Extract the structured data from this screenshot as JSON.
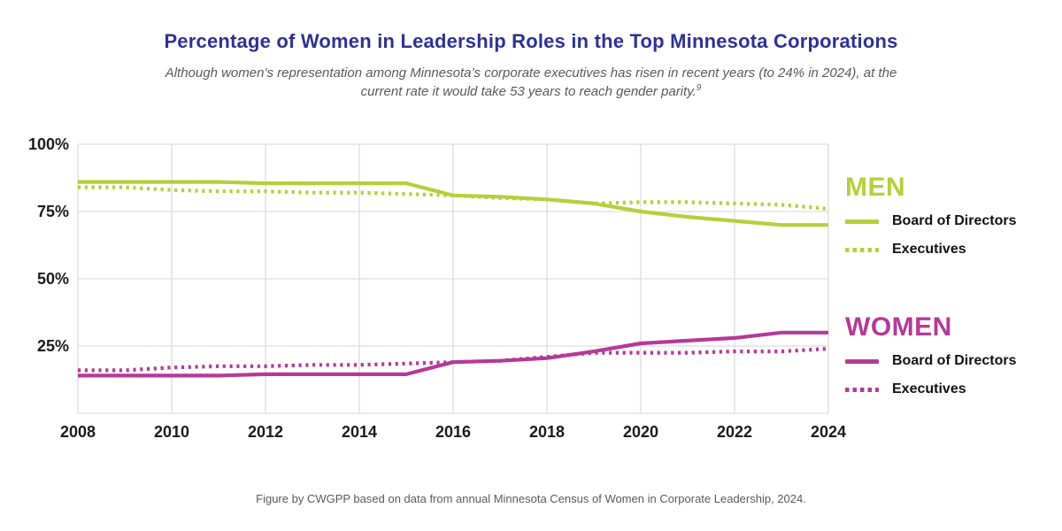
{
  "header": {
    "title": "Percentage of Women in Leadership Roles in the Top Minnesota Corporations",
    "subtitle_line1": "Although women’s representation among Minnesota’s corporate executives has risen in recent years (to 24% in 2024), at the",
    "subtitle_line2": "current rate it would take 53 years to reach gender parity.",
    "footnote_mark": "9"
  },
  "legend": {
    "men": {
      "heading": "MEN",
      "items": [
        {
          "label": "Board of Directors",
          "style": "solid"
        },
        {
          "label": "Executives",
          "style": "dotted"
        }
      ]
    },
    "women": {
      "heading": "WOMEN",
      "items": [
        {
          "label": "Board of Directors",
          "style": "solid"
        },
        {
          "label": "Executives",
          "style": "dotted"
        }
      ]
    }
  },
  "footer": {
    "caption": "Figure by CWGPP based on data from annual Minnesota Census of Women in Corporate Leadership, 2024."
  },
  "colors": {
    "men": "#b6ce3b",
    "women": "#b43a97",
    "title": "#2e3192",
    "muted": "#58595b",
    "grid": "#dcdcdc"
  },
  "chart_data": {
    "type": "line",
    "x": [
      2008,
      2009,
      2010,
      2011,
      2012,
      2013,
      2014,
      2015,
      2016,
      2017,
      2018,
      2019,
      2020,
      2021,
      2022,
      2023,
      2024
    ],
    "x_tick_labels": [
      "2008",
      "2010",
      "2012",
      "2014",
      "2016",
      "2018",
      "2020",
      "2022",
      "2024"
    ],
    "x_tick_values": [
      2008,
      2010,
      2012,
      2014,
      2016,
      2018,
      2020,
      2022,
      2024
    ],
    "y_tick_labels": [
      "100%",
      "75%",
      "50%",
      "25%"
    ],
    "y_tick_values": [
      100,
      75,
      50,
      25
    ],
    "xlim": [
      2008,
      2024
    ],
    "ylim": [
      0,
      100
    ],
    "grid": true,
    "legend_position": "right",
    "series": [
      {
        "name": "Men Board of Directors",
        "group": "men",
        "style": "solid",
        "values": [
          86,
          86,
          86,
          86,
          85.5,
          85.5,
          85.5,
          85.5,
          81,
          80.5,
          79.5,
          78,
          75,
          73,
          71.5,
          70,
          70
        ]
      },
      {
        "name": "Men Executives",
        "group": "men",
        "style": "dotted",
        "values": [
          84,
          84,
          83,
          82.5,
          82.5,
          82,
          82,
          81.5,
          81,
          80,
          79.5,
          78,
          78.5,
          78.5,
          78,
          77.5,
          76
        ]
      },
      {
        "name": "Women Board of Directors",
        "group": "women",
        "style": "solid",
        "values": [
          14,
          14,
          14,
          14,
          14.5,
          14.5,
          14.5,
          14.5,
          19,
          19.5,
          20.5,
          23,
          26,
          27,
          28,
          30,
          30
        ]
      },
      {
        "name": "Women Executives",
        "group": "women",
        "style": "dotted",
        "values": [
          16,
          16,
          17,
          17.5,
          17.5,
          18,
          18,
          18.5,
          19,
          19.5,
          21,
          22.5,
          22.5,
          22.5,
          23,
          23,
          24
        ]
      }
    ]
  }
}
